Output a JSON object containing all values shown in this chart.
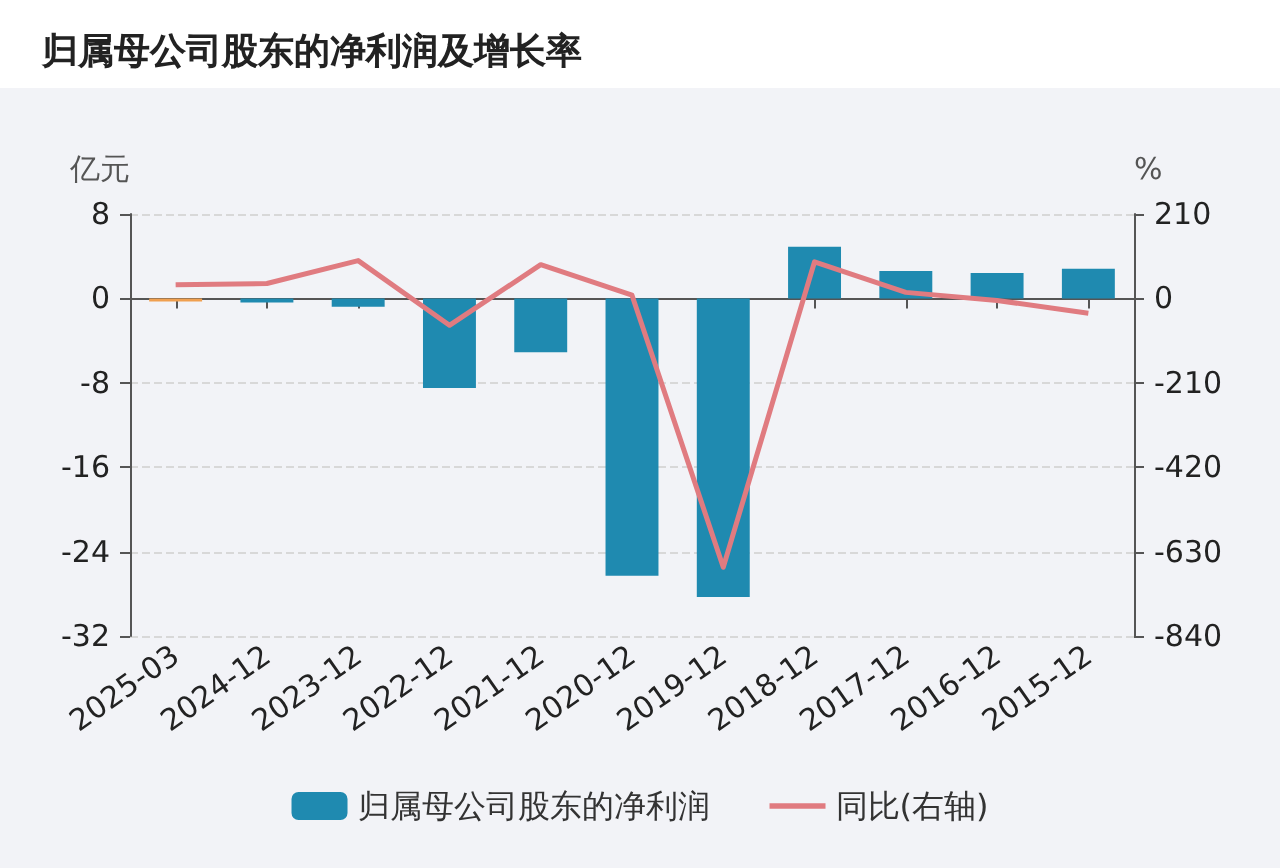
{
  "chart_data": {
    "type": "bar",
    "title": "归属母公司股东的净利润及增长率",
    "ylabel": "亿元",
    "y2label": "%",
    "categories": [
      "2025-03",
      "2024-12",
      "2023-12",
      "2022-12",
      "2021-12",
      "2020-12",
      "2019-12",
      "2018-12",
      "2017-12",
      "2016-12",
      "2015-12"
    ],
    "series": [
      {
        "name": "归属母公司股东的净利润",
        "color": "#1f8ab0",
        "colors": [
          "#f0a050",
          "#1f8ab0",
          "#1f8ab0",
          "#1f8ab0",
          "#1f8ab0",
          "#1f8ab0",
          "#1f8ab0",
          "#1f8ab0",
          "#1f8ab0",
          "#1f8ab0",
          "#1f8ab0"
        ],
        "values": [
          -0.3,
          -0.4,
          -0.8,
          -8.5,
          -5.1,
          -26.3,
          -28.3,
          4.9,
          2.6,
          2.4,
          2.8
        ]
      },
      {
        "name": "同比(右轴)",
        "type": "line",
        "axis": "y2",
        "color": "#e07b80",
        "values": [
          34,
          37,
          94,
          -67,
          84,
          8,
          -669,
          91,
          15,
          -5,
          -37
        ]
      }
    ],
    "ylim": [
      -32,
      8
    ],
    "yticks": [
      -32,
      -24,
      -16,
      -8,
      0,
      8
    ],
    "y2lim": [
      -840,
      210
    ],
    "y2ticks": [
      -840,
      -630,
      -420,
      -210,
      0,
      210
    ],
    "grid": "y",
    "legend": "bottom",
    "marker": "none",
    "line_style": "solid"
  }
}
